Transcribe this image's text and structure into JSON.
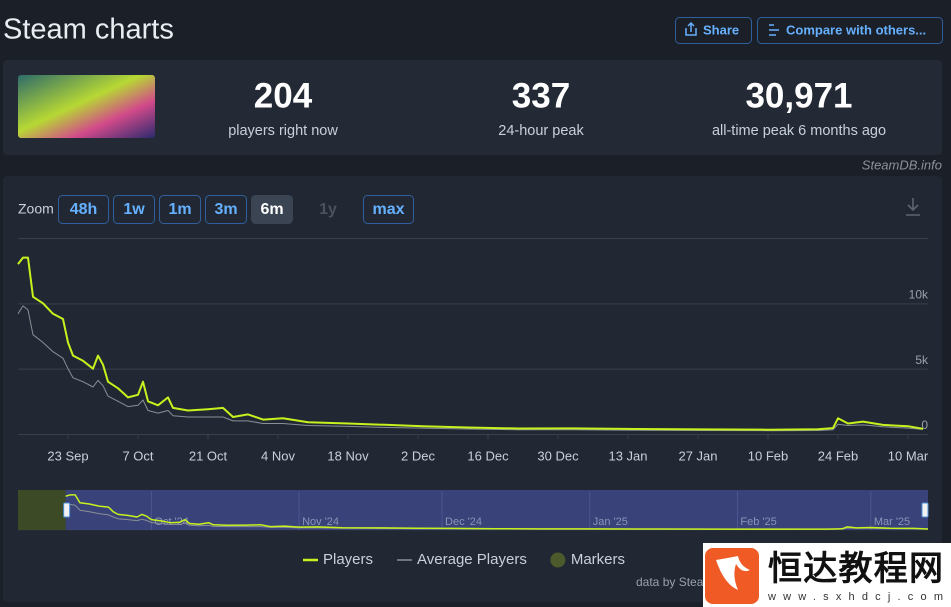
{
  "header": {
    "title": "Steam charts",
    "buttons": [
      "Share",
      "Compare with others..."
    ]
  },
  "stats": [
    {
      "value": "204",
      "label": "players right now"
    },
    {
      "value": "337",
      "label": "24-hour peak"
    },
    {
      "value": "30,971",
      "label": "all-time peak 6 months ago"
    }
  ],
  "credit": "SteamDB.info",
  "zoom": {
    "label": "Zoom",
    "options": [
      "48h",
      "1w",
      "1m",
      "3m",
      "6m",
      "1y",
      "max"
    ],
    "active": "6m",
    "disabled": [
      "1y"
    ]
  },
  "chart_data": {
    "type": "line",
    "x": [
      "2024-09-13",
      "2024-09-14",
      "2024-09-15",
      "2024-09-16",
      "2024-09-18",
      "2024-09-20",
      "2024-09-22",
      "2024-09-23",
      "2024-09-24",
      "2024-09-26",
      "2024-09-28",
      "2024-09-29",
      "2024-09-30",
      "2024-10-01",
      "2024-10-03",
      "2024-10-05",
      "2024-10-07",
      "2024-10-08",
      "2024-10-09",
      "2024-10-11",
      "2024-10-13",
      "2024-10-14",
      "2024-10-17",
      "2024-10-21",
      "2024-10-24",
      "2024-10-26",
      "2024-10-29",
      "2024-11-01",
      "2024-11-05",
      "2024-11-10",
      "2024-11-18",
      "2024-11-26",
      "2024-12-03",
      "2024-12-12",
      "2024-12-22",
      "2025-01-02",
      "2025-01-15",
      "2025-01-28",
      "2025-02-10",
      "2025-02-20",
      "2025-02-23",
      "2025-02-24",
      "2025-02-26",
      "2025-03-01",
      "2025-03-05",
      "2025-03-10",
      "2025-03-13"
    ],
    "series": [
      {
        "name": "Players",
        "color": "#c6f21d",
        "values": [
          13000,
          13500,
          13500,
          10500,
          10000,
          9200,
          8800,
          7000,
          6000,
          5600,
          5000,
          6000,
          5300,
          4000,
          3500,
          2800,
          3000,
          4000,
          2500,
          2200,
          2800,
          2000,
          1800,
          1900,
          2000,
          1300,
          1500,
          1100,
          1200,
          900,
          800,
          700,
          600,
          500,
          420,
          430,
          380,
          350,
          330,
          360,
          450,
          1200,
          800,
          950,
          700,
          600,
          400
        ]
      },
      {
        "name": "Average Players",
        "color": "#8a8f96",
        "values": [
          9200,
          9800,
          9500,
          7600,
          7000,
          6300,
          5800,
          5000,
          4300,
          4000,
          3600,
          4100,
          3700,
          2900,
          2500,
          2100,
          2200,
          2600,
          1800,
          1600,
          1800,
          1400,
          1300,
          1300,
          1300,
          1000,
          1000,
          800,
          800,
          650,
          580,
          500,
          450,
          380,
          320,
          320,
          290,
          270,
          250,
          270,
          330,
          750,
          650,
          700,
          550,
          450,
          350
        ]
      }
    ],
    "markers": {
      "name": "Markers",
      "color": "#4d5a2c"
    },
    "xlim": [
      "2024-09-13",
      "2025-03-14"
    ],
    "xticks": [
      {
        "value": "2024-09-23",
        "label": "23 Sep"
      },
      {
        "value": "2024-10-07",
        "label": "7 Oct"
      },
      {
        "value": "2024-10-21",
        "label": "21 Oct"
      },
      {
        "value": "2024-11-04",
        "label": "4 Nov"
      },
      {
        "value": "2024-11-18",
        "label": "18 Nov"
      },
      {
        "value": "2024-12-02",
        "label": "2 Dec"
      },
      {
        "value": "2024-12-16",
        "label": "16 Dec"
      },
      {
        "value": "2024-12-30",
        "label": "30 Dec"
      },
      {
        "value": "2025-01-13",
        "label": "13 Jan"
      },
      {
        "value": "2025-01-27",
        "label": "27 Jan"
      },
      {
        "value": "2025-02-10",
        "label": "10 Feb"
      },
      {
        "value": "2025-02-24",
        "label": "24 Feb"
      },
      {
        "value": "2025-03-10",
        "label": "10 Mar"
      }
    ],
    "ylim": [
      0,
      15000
    ],
    "yticks": [
      {
        "value": 0,
        "label": "0"
      },
      {
        "value": 5000,
        "label": "5k"
      },
      {
        "value": 10000,
        "label": "10k"
      }
    ],
    "grid": true,
    "navigator": {
      "xlim": [
        "2024-09-03",
        "2025-03-13"
      ],
      "selection": [
        "2024-09-13",
        "2025-03-13"
      ],
      "xticks": [
        {
          "value": "2024-10-01",
          "label": "Oct '24"
        },
        {
          "value": "2024-11-01",
          "label": "Nov '24"
        },
        {
          "value": "2024-12-01",
          "label": "Dec '24"
        },
        {
          "value": "2025-01-01",
          "label": "Jan '25"
        },
        {
          "value": "2025-02-01",
          "label": "Feb '25"
        },
        {
          "value": "2025-03-01",
          "label": "Mar '25"
        }
      ]
    },
    "source": "data by SteamDB.info"
  },
  "watermark": {
    "name": "恒达教程网",
    "url": "www.sxhdcj.com"
  }
}
